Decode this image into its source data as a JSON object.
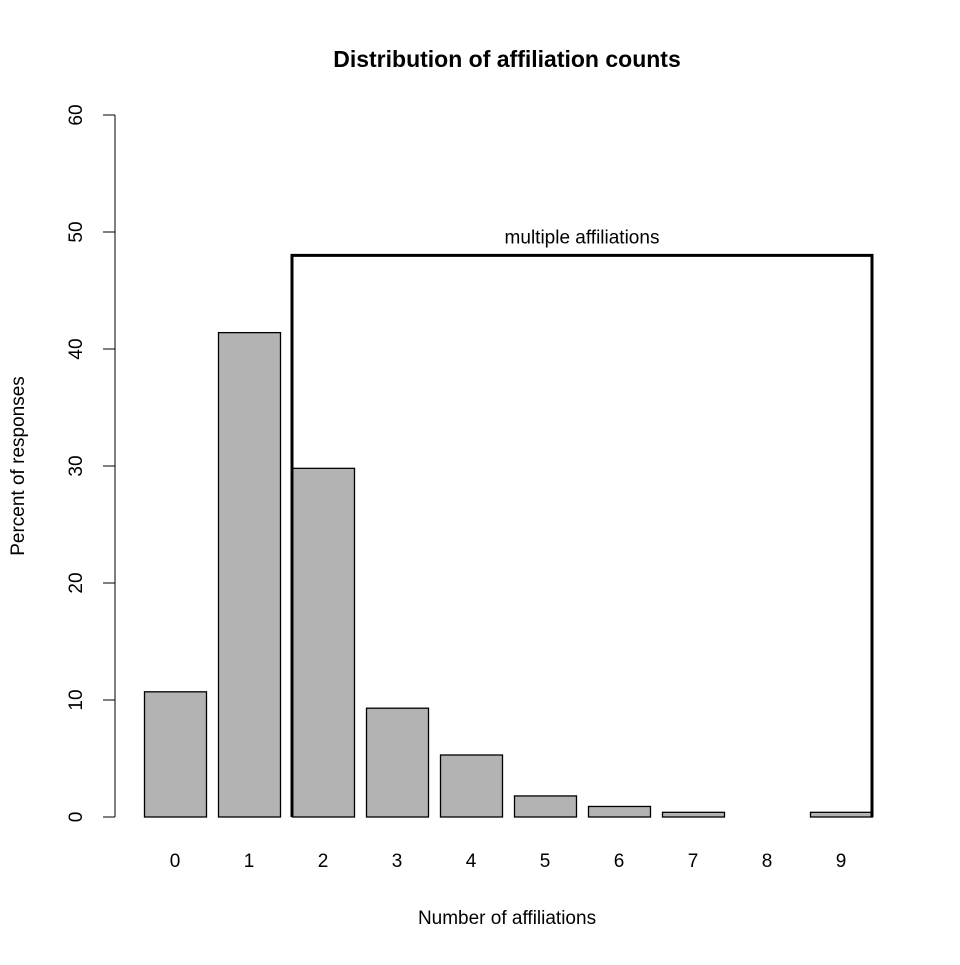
{
  "chart_data": {
    "type": "bar",
    "title": "Distribution of affiliation counts",
    "xlabel": "Number of affiliations",
    "ylabel": "Percent of responses",
    "categories": [
      "0",
      "1",
      "2",
      "3",
      "4",
      "5",
      "6",
      "7",
      "8",
      "9"
    ],
    "values": [
      10.7,
      41.4,
      29.8,
      9.3,
      5.3,
      1.8,
      0.9,
      0.4,
      0.0,
      0.4
    ],
    "ylim": [
      0,
      60
    ],
    "yticks": [
      "0",
      "10",
      "20",
      "30",
      "40",
      "50",
      "60"
    ],
    "bar_color": "#b3b3b3",
    "grid": false,
    "annotation": {
      "text": "multiple affiliations",
      "bracket_from": "2",
      "bracket_to": "9",
      "bracket_level": 48
    }
  }
}
